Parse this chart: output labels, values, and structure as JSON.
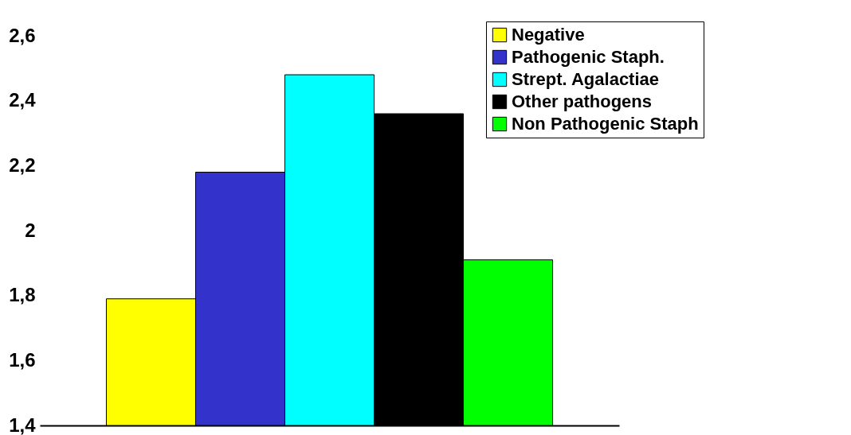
{
  "chart_data": {
    "type": "bar",
    "categories": [
      null
    ],
    "series": [
      {
        "name": "Negative",
        "color": "#ffff00",
        "values": [
          1.79
        ]
      },
      {
        "name": "Pathogenic Staph.",
        "color": "#3333cc",
        "values": [
          2.18
        ]
      },
      {
        "name": "Strept. Agalactiae",
        "color": "#00ffff",
        "values": [
          2.48
        ]
      },
      {
        "name": "Other pathogens",
        "color": "#000000",
        "values": [
          2.36
        ]
      },
      {
        "name": "Non Pathogenic Staph",
        "color": "#00ff00",
        "values": [
          1.91
        ]
      }
    ],
    "ylim": [
      1.4,
      2.6
    ],
    "yticks": [
      {
        "value": 1.4,
        "label": "1,4"
      },
      {
        "value": 1.6,
        "label": "1,6"
      },
      {
        "value": 1.8,
        "label": "1,8"
      },
      2,
      {
        "value": 2.2,
        "label": "2,2"
      },
      {
        "value": 2.4,
        "label": "2,4"
      },
      {
        "value": 2.6,
        "label": "2,6"
      }
    ],
    "grid": false,
    "legend": "top right"
  }
}
